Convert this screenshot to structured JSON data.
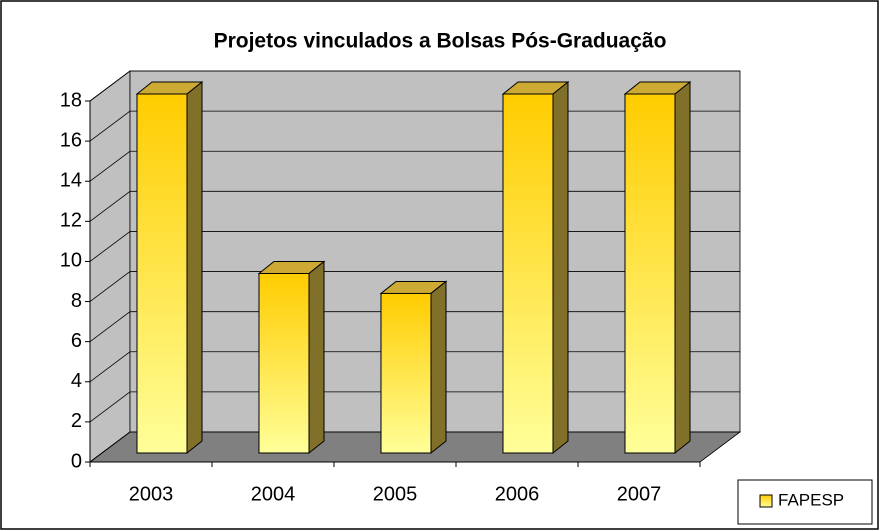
{
  "chart_data": {
    "type": "bar",
    "title": "Projetos vinculados a Bolsas Pós-Graduação",
    "categories": [
      "2003",
      "2004",
      "2005",
      "2006",
      "2007"
    ],
    "series": [
      {
        "name": "FAPESP",
        "color": "#ffcc00",
        "values": [
          18,
          9,
          8,
          18,
          18
        ]
      }
    ],
    "ylim": [
      0,
      18
    ],
    "yticks": [
      0,
      2,
      4,
      6,
      8,
      10,
      12,
      14,
      16,
      18
    ],
    "grid": true,
    "legend": "right"
  }
}
